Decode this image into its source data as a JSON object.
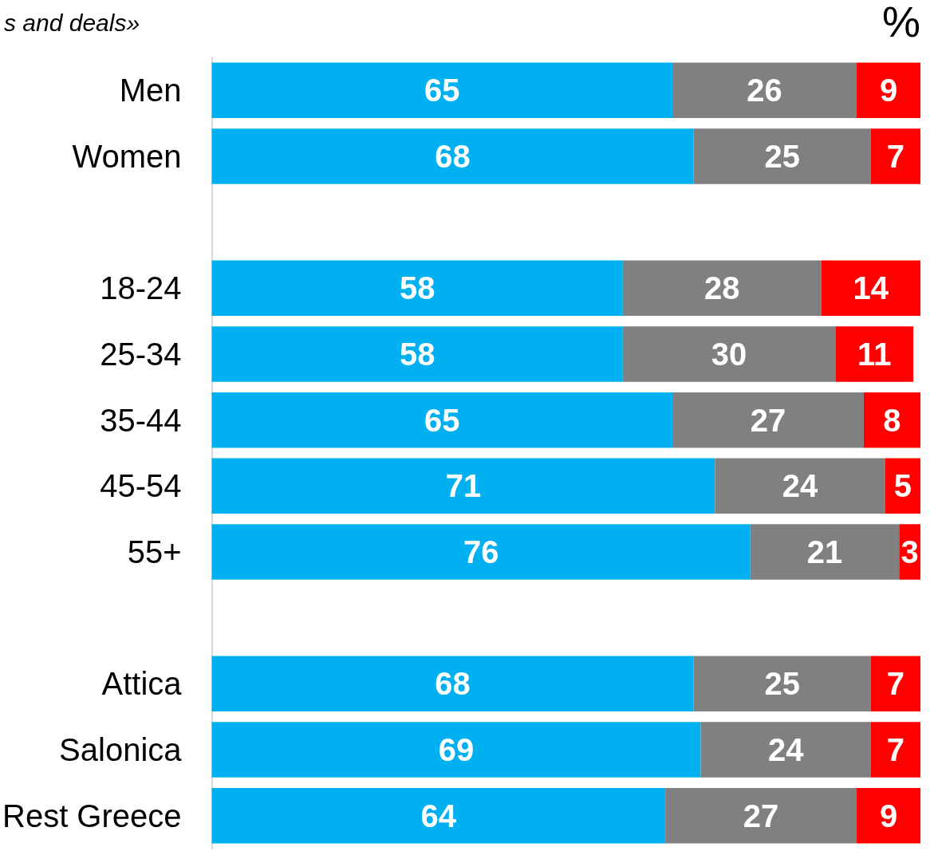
{
  "chart_data": {
    "type": "bar",
    "orientation": "horizontal",
    "stacked": true,
    "title": "s and deals»",
    "annotations": [
      "%"
    ],
    "categories": [
      "Men",
      "Women",
      null,
      "18-24",
      "25-34",
      "35-44",
      "45-54",
      "55+",
      null,
      "Attica",
      "Salonica",
      "Rest Greece"
    ],
    "series": [
      {
        "color": "#00b0f0",
        "values": [
          65,
          68,
          null,
          58,
          58,
          65,
          71,
          76,
          null,
          68,
          69,
          64
        ]
      },
      {
        "color": "#808080",
        "values": [
          26,
          25,
          null,
          28,
          30,
          27,
          24,
          21,
          null,
          25,
          24,
          27
        ]
      },
      {
        "color": "#ff0000",
        "values": [
          9,
          7,
          null,
          14,
          11,
          8,
          5,
          3,
          null,
          7,
          7,
          9
        ]
      }
    ],
    "xlim": [
      0,
      100
    ],
    "tick_labels": "y",
    "data_labels": true,
    "grid": false
  }
}
